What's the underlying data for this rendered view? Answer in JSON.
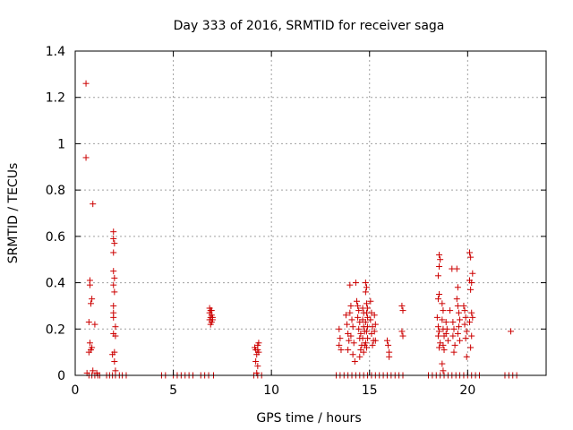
{
  "chart_data": {
    "type": "scatter",
    "title": "Day 333 of 2016, SRMTID for receiver saga",
    "xlabel": "GPS time / hours",
    "ylabel": "SRMTID / TECUs",
    "xlim": [
      0,
      24
    ],
    "ylim": [
      0,
      1.4
    ],
    "xticks": [
      0,
      5,
      10,
      15,
      20
    ],
    "yticks": [
      0,
      0.2,
      0.4,
      0.6,
      0.8,
      1,
      1.2,
      1.4
    ],
    "ytick_labels": [
      "0",
      "0.2",
      "0.4",
      "0.6",
      "0.8",
      "1",
      "1.2",
      "1.4"
    ],
    "grid": true,
    "legend": "none",
    "marker": "+",
    "color": "#cc0000",
    "series": [
      {
        "points": [
          [
            0.55,
            1.26
          ],
          [
            0.55,
            0.94
          ],
          [
            0.9,
            0.74
          ],
          [
            0.75,
            0.41
          ],
          [
            0.75,
            0.39
          ],
          [
            0.85,
            0.33
          ],
          [
            0.8,
            0.31
          ],
          [
            0.7,
            0.23
          ],
          [
            1.0,
            0.22
          ],
          [
            0.75,
            0.14
          ],
          [
            0.85,
            0.12
          ],
          [
            0.7,
            0.1
          ],
          [
            0.8,
            0.11
          ],
          [
            0.6,
            0.01
          ],
          [
            0.9,
            0.02
          ],
          [
            1.1,
            0.01
          ],
          [
            0.7,
            0.0
          ],
          [
            0.85,
            0.0
          ],
          [
            1.0,
            0.0
          ],
          [
            1.15,
            0.0
          ],
          [
            1.25,
            0.0
          ],
          [
            1.95,
            0.62
          ],
          [
            1.95,
            0.59
          ],
          [
            2.0,
            0.57
          ],
          [
            1.95,
            0.53
          ],
          [
            1.95,
            0.45
          ],
          [
            2.0,
            0.42
          ],
          [
            1.95,
            0.39
          ],
          [
            2.0,
            0.36
          ],
          [
            1.95,
            0.3
          ],
          [
            1.95,
            0.27
          ],
          [
            1.95,
            0.25
          ],
          [
            2.05,
            0.21
          ],
          [
            1.95,
            0.18
          ],
          [
            2.05,
            0.17
          ],
          [
            2.0,
            0.1
          ],
          [
            1.9,
            0.09
          ],
          [
            2.0,
            0.06
          ],
          [
            2.05,
            0.02
          ],
          [
            1.6,
            0.0
          ],
          [
            1.75,
            0.0
          ],
          [
            1.9,
            0.0
          ],
          [
            2.05,
            0.0
          ],
          [
            2.25,
            0.0
          ],
          [
            2.4,
            0.0
          ],
          [
            2.6,
            0.0
          ],
          [
            4.4,
            0.0
          ],
          [
            4.6,
            0.0
          ],
          [
            5.0,
            0.0
          ],
          [
            5.2,
            0.0
          ],
          [
            5.4,
            0.0
          ],
          [
            5.6,
            0.0
          ],
          [
            5.8,
            0.0
          ],
          [
            6.0,
            0.0
          ],
          [
            6.4,
            0.0
          ],
          [
            6.6,
            0.0
          ],
          [
            6.8,
            0.0
          ],
          [
            7.05,
            0.0
          ],
          [
            6.85,
            0.29
          ],
          [
            6.9,
            0.28
          ],
          [
            6.95,
            0.28
          ],
          [
            6.85,
            0.27
          ],
          [
            6.95,
            0.26
          ],
          [
            6.9,
            0.25
          ],
          [
            7.0,
            0.25
          ],
          [
            6.85,
            0.24
          ],
          [
            6.95,
            0.23
          ],
          [
            6.9,
            0.22
          ],
          [
            7.0,
            0.24
          ],
          [
            9.15,
            0.12
          ],
          [
            9.3,
            0.13
          ],
          [
            9.35,
            0.14
          ],
          [
            9.2,
            0.11
          ],
          [
            9.3,
            0.11
          ],
          [
            9.25,
            0.09
          ],
          [
            9.35,
            0.1
          ],
          [
            9.2,
            0.06
          ],
          [
            9.3,
            0.04
          ],
          [
            9.25,
            0.01
          ],
          [
            9.1,
            0.0
          ],
          [
            9.3,
            0.0
          ],
          [
            9.5,
            0.0
          ],
          [
            13.3,
            0.0
          ],
          [
            13.5,
            0.0
          ],
          [
            13.7,
            0.0
          ],
          [
            13.9,
            0.0
          ],
          [
            14.1,
            0.0
          ],
          [
            14.3,
            0.0
          ],
          [
            14.5,
            0.0
          ],
          [
            14.7,
            0.0
          ],
          [
            14.9,
            0.0
          ],
          [
            15.1,
            0.0
          ],
          [
            15.3,
            0.0
          ],
          [
            15.5,
            0.0
          ],
          [
            15.7,
            0.0
          ],
          [
            15.9,
            0.0
          ],
          [
            16.1,
            0.0
          ],
          [
            16.3,
            0.0
          ],
          [
            16.5,
            0.0
          ],
          [
            16.7,
            0.0
          ],
          [
            13.45,
            0.2
          ],
          [
            13.5,
            0.16
          ],
          [
            13.45,
            0.13
          ],
          [
            13.55,
            0.11
          ],
          [
            13.8,
            0.26
          ],
          [
            13.85,
            0.22
          ],
          [
            13.9,
            0.18
          ],
          [
            13.95,
            0.15
          ],
          [
            13.9,
            0.11
          ],
          [
            14.0,
            0.39
          ],
          [
            14.05,
            0.3
          ],
          [
            14.0,
            0.27
          ],
          [
            14.1,
            0.24
          ],
          [
            14.15,
            0.21
          ],
          [
            14.05,
            0.17
          ],
          [
            14.2,
            0.14
          ],
          [
            14.15,
            0.09
          ],
          [
            14.25,
            0.06
          ],
          [
            14.3,
            0.4
          ],
          [
            14.35,
            0.32
          ],
          [
            14.4,
            0.3
          ],
          [
            14.45,
            0.28
          ],
          [
            14.4,
            0.25
          ],
          [
            14.5,
            0.23
          ],
          [
            14.45,
            0.2
          ],
          [
            14.55,
            0.18
          ],
          [
            14.5,
            0.16
          ],
          [
            14.6,
            0.13
          ],
          [
            14.55,
            0.11
          ],
          [
            14.5,
            0.08
          ],
          [
            14.65,
            0.29
          ],
          [
            14.7,
            0.27
          ],
          [
            14.65,
            0.24
          ],
          [
            14.7,
            0.21
          ],
          [
            14.75,
            0.19
          ],
          [
            14.65,
            0.16
          ],
          [
            14.75,
            0.13
          ],
          [
            14.7,
            0.1
          ],
          [
            14.8,
            0.4
          ],
          [
            14.85,
            0.38
          ],
          [
            14.8,
            0.36
          ],
          [
            14.85,
            0.31
          ],
          [
            14.9,
            0.29
          ],
          [
            14.85,
            0.27
          ],
          [
            14.9,
            0.25
          ],
          [
            14.8,
            0.23
          ],
          [
            14.9,
            0.21
          ],
          [
            14.85,
            0.19
          ],
          [
            14.9,
            0.16
          ],
          [
            14.8,
            0.14
          ],
          [
            14.85,
            0.12
          ],
          [
            15.05,
            0.32
          ],
          [
            15.1,
            0.27
          ],
          [
            15.05,
            0.24
          ],
          [
            15.15,
            0.21
          ],
          [
            15.1,
            0.18
          ],
          [
            15.2,
            0.15
          ],
          [
            15.15,
            0.13
          ],
          [
            15.25,
            0.26
          ],
          [
            15.3,
            0.22
          ],
          [
            15.25,
            0.19
          ],
          [
            15.3,
            0.15
          ],
          [
            15.9,
            0.15
          ],
          [
            15.95,
            0.13
          ],
          [
            16.0,
            0.1
          ],
          [
            16.0,
            0.08
          ],
          [
            16.65,
            0.3
          ],
          [
            16.7,
            0.28
          ],
          [
            16.65,
            0.19
          ],
          [
            16.7,
            0.17
          ],
          [
            18.0,
            0.0
          ],
          [
            18.2,
            0.0
          ],
          [
            18.4,
            0.0
          ],
          [
            18.6,
            0.0
          ],
          [
            18.8,
            0.0
          ],
          [
            19.0,
            0.0
          ],
          [
            19.2,
            0.0
          ],
          [
            19.4,
            0.0
          ],
          [
            19.6,
            0.0
          ],
          [
            19.8,
            0.0
          ],
          [
            20.0,
            0.0
          ],
          [
            20.2,
            0.0
          ],
          [
            20.4,
            0.0
          ],
          [
            20.6,
            0.0
          ],
          [
            18.55,
            0.52
          ],
          [
            18.6,
            0.5
          ],
          [
            18.55,
            0.47
          ],
          [
            18.5,
            0.43
          ],
          [
            18.55,
            0.35
          ],
          [
            18.5,
            0.33
          ],
          [
            18.45,
            0.25
          ],
          [
            18.5,
            0.21
          ],
          [
            18.55,
            0.19
          ],
          [
            18.5,
            0.17
          ],
          [
            18.6,
            0.14
          ],
          [
            18.55,
            0.12
          ],
          [
            18.7,
            0.31
          ],
          [
            18.75,
            0.28
          ],
          [
            18.7,
            0.24
          ],
          [
            18.75,
            0.2
          ],
          [
            18.8,
            0.17
          ],
          [
            18.75,
            0.13
          ],
          [
            18.8,
            0.11
          ],
          [
            18.7,
            0.05
          ],
          [
            18.75,
            0.02
          ],
          [
            18.9,
            0.23
          ],
          [
            18.95,
            0.2
          ],
          [
            18.9,
            0.18
          ],
          [
            19.0,
            0.15
          ],
          [
            19.1,
            0.28
          ],
          [
            19.2,
            0.46
          ],
          [
            19.25,
            0.23
          ],
          [
            19.3,
            0.2
          ],
          [
            19.25,
            0.17
          ],
          [
            19.35,
            0.13
          ],
          [
            19.3,
            0.1
          ],
          [
            19.45,
            0.46
          ],
          [
            19.5,
            0.38
          ],
          [
            19.45,
            0.33
          ],
          [
            19.5,
            0.3
          ],
          [
            19.55,
            0.27
          ],
          [
            19.6,
            0.24
          ],
          [
            19.55,
            0.21
          ],
          [
            19.5,
            0.18
          ],
          [
            19.6,
            0.15
          ],
          [
            19.8,
            0.3
          ],
          [
            19.85,
            0.28
          ],
          [
            19.9,
            0.25
          ],
          [
            19.85,
            0.22
          ],
          [
            19.95,
            0.19
          ],
          [
            19.9,
            0.16
          ],
          [
            19.95,
            0.08
          ],
          [
            20.1,
            0.53
          ],
          [
            20.15,
            0.51
          ],
          [
            20.1,
            0.41
          ],
          [
            20.2,
            0.4
          ],
          [
            20.25,
            0.44
          ],
          [
            20.15,
            0.37
          ],
          [
            20.2,
            0.27
          ],
          [
            20.25,
            0.25
          ],
          [
            20.1,
            0.23
          ],
          [
            20.2,
            0.17
          ],
          [
            20.15,
            0.12
          ],
          [
            21.9,
            0.0
          ],
          [
            22.1,
            0.0
          ],
          [
            22.3,
            0.0
          ],
          [
            22.5,
            0.0
          ],
          [
            22.2,
            0.19
          ]
        ]
      }
    ]
  }
}
